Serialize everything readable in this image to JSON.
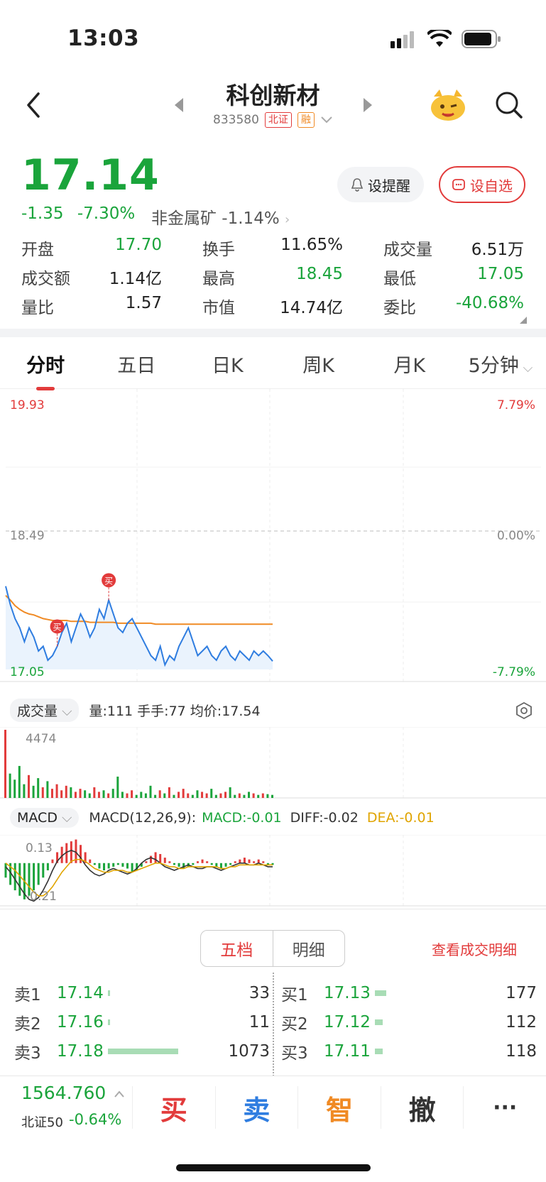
{
  "status_bar": {
    "time": "13:03"
  },
  "header": {
    "title": "科创新材",
    "code": "833580",
    "exchange_tag": "北证",
    "margin_tag": "融"
  },
  "quote": {
    "price": "17.14",
    "change": "-1.35",
    "change_pct": "-7.30%",
    "sector": "非金属矿 -1.14%",
    "alert_label": "设提醒",
    "watch_label": "设自选"
  },
  "stats": [
    [
      {
        "label": "开盘",
        "value": "17.70",
        "color": "green"
      },
      {
        "label": "换手",
        "value": "11.65%",
        "color": "black"
      },
      {
        "label": "成交量",
        "value": "6.51万",
        "color": "black"
      }
    ],
    [
      {
        "label": "成交额",
        "value": "1.14亿",
        "color": "black"
      },
      {
        "label": "最高",
        "value": "18.45",
        "color": "green"
      },
      {
        "label": "最低",
        "value": "17.05",
        "color": "green"
      }
    ],
    [
      {
        "label": "量比",
        "value": "1.57",
        "color": "black"
      },
      {
        "label": "市值",
        "value": "14.74亿",
        "color": "black"
      },
      {
        "label": "委比",
        "value": "-40.68%",
        "color": "green"
      }
    ]
  ],
  "tabs": [
    "分时",
    "五日",
    "日K",
    "周K",
    "月K",
    "5分钟"
  ],
  "chart_data": {
    "type": "line",
    "price_axis": {
      "top": "19.93",
      "mid": "18.49",
      "bottom": "17.05"
    },
    "pct_axis": {
      "top": "7.79%",
      "mid": "0.00%",
      "bottom": "-7.79%"
    },
    "price_ylim": [
      17.05,
      19.93
    ],
    "price": [
      17.95,
      17.75,
      17.6,
      17.5,
      17.35,
      17.5,
      17.4,
      17.25,
      17.3,
      17.15,
      17.2,
      17.3,
      17.45,
      17.55,
      17.35,
      17.5,
      17.65,
      17.55,
      17.4,
      17.5,
      17.7,
      17.6,
      17.8,
      17.65,
      17.5,
      17.45,
      17.55,
      17.6,
      17.5,
      17.4,
      17.3,
      17.2,
      17.15,
      17.3,
      17.1,
      17.2,
      17.15,
      17.3,
      17.4,
      17.5,
      17.35,
      17.2,
      17.25,
      17.3,
      17.2,
      17.15,
      17.25,
      17.3,
      17.2,
      17.15,
      17.25,
      17.2,
      17.15,
      17.25,
      17.2,
      17.25,
      17.2,
      17.14
    ],
    "avg_price": [
      17.85,
      17.8,
      17.74,
      17.7,
      17.67,
      17.65,
      17.64,
      17.62,
      17.6,
      17.59,
      17.58,
      17.58,
      17.58,
      17.58,
      17.57,
      17.57,
      17.57,
      17.57,
      17.56,
      17.56,
      17.56,
      17.56,
      17.56,
      17.56,
      17.55,
      17.55,
      17.55,
      17.55,
      17.55,
      17.55,
      17.55,
      17.55,
      17.54,
      17.54,
      17.54,
      17.54,
      17.54,
      17.54,
      17.54,
      17.54,
      17.54,
      17.54,
      17.54,
      17.54,
      17.54,
      17.54,
      17.54,
      17.54,
      17.54,
      17.54,
      17.54,
      17.54,
      17.54,
      17.54,
      17.54,
      17.54,
      17.54,
      17.54
    ],
    "buy_markers": [
      {
        "index": 11,
        "label": "买"
      },
      {
        "index": 22,
        "label": "买"
      }
    ],
    "volume_max_label": "4474",
    "volume": [
      4474,
      1600,
      1200,
      2100,
      900,
      1500,
      800,
      1300,
      700,
      1100,
      600,
      900,
      500,
      800,
      700,
      400,
      600,
      500,
      300,
      700,
      400,
      500,
      300,
      600,
      1400,
      400,
      300,
      500,
      200,
      400,
      300,
      800,
      200,
      500,
      300,
      700,
      200,
      400,
      600,
      300,
      200,
      500,
      400,
      300,
      600,
      200,
      300,
      400,
      700,
      200,
      300,
      200,
      400,
      300,
      200,
      300,
      250,
      200
    ],
    "macd_axis": {
      "top": "0.13",
      "bottom": "-0.21"
    },
    "macd_hist": [
      -0.08,
      -0.12,
      -0.15,
      -0.18,
      -0.2,
      -0.18,
      -0.15,
      -0.12,
      -0.08,
      -0.04,
      0.02,
      0.06,
      0.09,
      0.11,
      0.12,
      0.13,
      0.1,
      0.06,
      0.02,
      -0.01,
      -0.03,
      -0.04,
      -0.03,
      -0.02,
      -0.01,
      -0.02,
      -0.03,
      -0.05,
      -0.04,
      -0.02,
      0.01,
      0.04,
      0.06,
      0.05,
      0.03,
      0.01,
      -0.01,
      -0.02,
      -0.03,
      -0.02,
      -0.01,
      0.01,
      0.02,
      0.01,
      -0.01,
      -0.02,
      -0.03,
      -0.02,
      -0.01,
      0.01,
      0.02,
      0.03,
      0.02,
      0.01,
      0.02,
      0.01,
      -0.01,
      -0.01
    ],
    "diff": [
      -0.02,
      -0.05,
      -0.09,
      -0.13,
      -0.17,
      -0.2,
      -0.21,
      -0.19,
      -0.15,
      -0.1,
      -0.04,
      0.01,
      0.04,
      0.06,
      0.07,
      0.06,
      0.03,
      -0.01,
      -0.04,
      -0.06,
      -0.07,
      -0.06,
      -0.04,
      -0.03,
      -0.04,
      -0.05,
      -0.06,
      -0.05,
      -0.03,
      0.0,
      0.02,
      0.03,
      0.02,
      0.0,
      -0.02,
      -0.03,
      -0.04,
      -0.03,
      -0.02,
      -0.01,
      -0.02,
      -0.03,
      -0.03,
      -0.02,
      -0.02,
      -0.03,
      -0.04,
      -0.03,
      -0.02,
      -0.01,
      0.0,
      0.0,
      -0.01,
      -0.01,
      0.0,
      -0.01,
      -0.02,
      -0.02
    ],
    "dea": [
      0.0,
      -0.02,
      -0.04,
      -0.07,
      -0.1,
      -0.13,
      -0.16,
      -0.18,
      -0.18,
      -0.16,
      -0.13,
      -0.09,
      -0.05,
      -0.02,
      0.01,
      0.02,
      0.02,
      0.01,
      -0.01,
      -0.03,
      -0.04,
      -0.05,
      -0.05,
      -0.04,
      -0.04,
      -0.04,
      -0.05,
      -0.05,
      -0.04,
      -0.03,
      -0.02,
      -0.01,
      0.0,
      0.0,
      -0.01,
      -0.02,
      -0.02,
      -0.03,
      -0.03,
      -0.02,
      -0.02,
      -0.02,
      -0.02,
      -0.02,
      -0.02,
      -0.02,
      -0.03,
      -0.03,
      -0.02,
      -0.02,
      -0.01,
      -0.01,
      -0.01,
      -0.01,
      -0.01,
      -0.01,
      -0.01,
      -0.01
    ]
  },
  "volume_panel": {
    "selector": "成交量",
    "stats": "量:111 手手:77 均价:17.54"
  },
  "macd_panel": {
    "selector": "MACD",
    "params": "MACD(12,26,9):",
    "macd": "MACD:-0.01",
    "diff": "DIFF:-0.02",
    "dea": "DEA:-0.01"
  },
  "order_book": {
    "tabs": [
      "五档",
      "明细"
    ],
    "view_detail": "查看成交明细",
    "asks": [
      {
        "name": "卖1",
        "price": "17.14",
        "qty": "33",
        "level": 0.01
      },
      {
        "name": "卖2",
        "price": "17.16",
        "qty": "11",
        "level": 0.01
      },
      {
        "name": "卖3",
        "price": "17.18",
        "qty": "1073",
        "level": 0.55
      }
    ],
    "bids": [
      {
        "name": "买1",
        "price": "17.13",
        "qty": "177",
        "level": 0.09
      },
      {
        "name": "买2",
        "price": "17.12",
        "qty": "112",
        "level": 0.06
      },
      {
        "name": "买3",
        "price": "17.11",
        "qty": "118",
        "level": 0.06
      }
    ]
  },
  "bottom_bar": {
    "index_value": "1564.760",
    "index_name": "北证50",
    "index_change": "-0.64%",
    "actions": [
      "买",
      "卖",
      "智",
      "撤",
      "···"
    ]
  }
}
